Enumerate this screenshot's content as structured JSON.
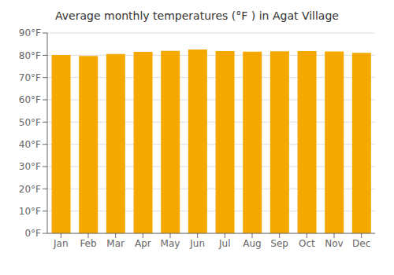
{
  "chart_data": {
    "type": "bar",
    "title": "Average monthly temperatures (°F ) in Agat Village",
    "categories": [
      "Jan",
      "Feb",
      "Mar",
      "Apr",
      "May",
      "Jun",
      "Jul",
      "Aug",
      "Sep",
      "Oct",
      "Nov",
      "Dec"
    ],
    "values": [
      80.1,
      79.7,
      80.6,
      81.5,
      82.0,
      82.6,
      81.9,
      81.6,
      81.8,
      81.9,
      81.7,
      81.1
    ],
    "color": "#F5A800",
    "ylim": [
      0,
      90
    ],
    "yticks": [
      {
        "value": 0,
        "label": "0°F"
      },
      {
        "value": 10,
        "label": "10°F"
      },
      {
        "value": 20,
        "label": "20°F"
      },
      {
        "value": 30,
        "label": "30°F"
      },
      {
        "value": 40,
        "label": "40°F"
      },
      {
        "value": 50,
        "label": "50°F"
      },
      {
        "value": 60,
        "label": "60°F"
      },
      {
        "value": 70,
        "label": "70°F"
      },
      {
        "value": 80,
        "label": "80°F"
      },
      {
        "value": 90,
        "label": "90°F"
      }
    ],
    "grid": true
  }
}
